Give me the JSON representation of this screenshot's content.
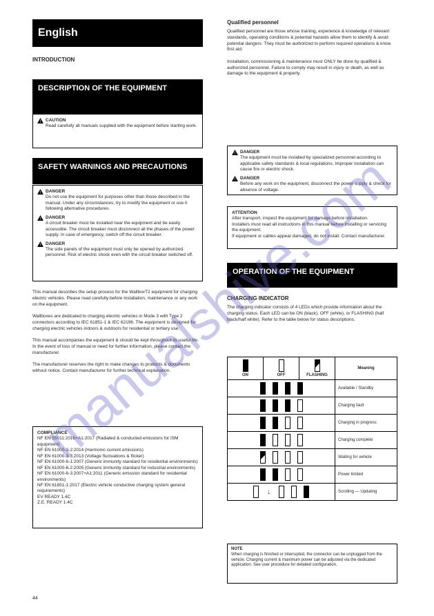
{
  "watermark": "manualshive.com",
  "page_number": "44",
  "banners": {
    "main": "English",
    "sub1": "DESCRIPTION OF THE EQUIPMENT",
    "sub2": "SAFETY WARNINGS AND PRECAUTIONS",
    "right": "OPERATION OF THE EQUIPMENT"
  },
  "box1": {
    "warning_label": "CAUTION",
    "text": "Read carefully all manuals supplied with the equipment before starting work."
  },
  "box2": {
    "w1_label": "DANGER",
    "w1_text": "Do not use the equipment for purposes other than those described in the manual. Under any circumstances, try to modify the equipment or use it following alternative procedures.",
    "w2_label": "DANGER",
    "w2_text": "A circuit breaker must be installed near the equipment and be easily accessible. The circuit breaker must disconnect all the phases of the power supply. In case of emergency, switch off the circuit breaker.",
    "w3_label": "DANGER",
    "w3_text": "The side panels of the equipment must only be opened by authorized personnel. Risk of electric shock even with the circuit breaker switched off."
  },
  "intro_heading": "INTRODUCTION",
  "intro_text": "This manual describes the setup process for the WallboxT2 equipment for charging electric vehicles. Please read carefully before installation, maintenance or any work on the equipment.\n\nWallboxes are dedicated to charging electric vehicles in Mode 3 with Type 2 connectors according to IEC 61851-1 & IEC 62196. The equipment is designed for charging electric vehicles indoors & outdoors for residential or tertiary use.\n\nThis manual accompanies the equipment & should be kept throughout its useful life. In the event of loss of manual or need for further information, please contact the manufacturer.\n\nThe manufacturer reserves the right to make changes to products & documents without notice. Contact manufacturer for further technical explanation.",
  "box3_heading": "COMPLIANCE",
  "box3_text": "NF EN 55011:2016+A1:2017 (Radiated & conducted emissions for ISM equipment)\nNF EN 61000-3-2:2014 (Harmonic current emissions)\nNF EN 61000-3-3:2013 (Voltage fluctuations & flicker)\nNF EN 61000-6-1:2007 (Generic immunity standard for residential environments)\nNF EN 61000-6-2:2005 (Generic immunity standard for industrial environments)\nNF EN 61000-6-3:2007+A1:2011 (Generic emission standard for residential environments)\nNF EN 61851-1:2017 (Electric vehicle conductive charging system general requirements)\nEV READY 1.4C\nZ.E. READY 1.4C",
  "right_text1_heading": "Qualified personnel",
  "right_text1": "Qualified personnel are those whose training, experience & knowledge of relevant standards, operating conditions & potential hazards allow them to identify & avoid potential dangers. They must be authorized to perform required operations & know first aid.\n\nInstallation, commissioning & maintenance must ONLY be done by qualified & authorized personnel. Failure to comply may result in injury or death, as well as damage to the equipment & property.",
  "rbox1": {
    "w1_label": "DANGER",
    "w1_text": "The equipment must be installed by specialized personnel according to applicable safety standards & local regulations. Improper installation can cause fire or electric shock.",
    "w2_label": "DANGER",
    "w2_text": "Before any work on the equipment, disconnect the power supply & check for absence of voltage."
  },
  "rbox2": {
    "heading": "ATTENTION",
    "text": "After transport, inspect the equipment for damage before installation.\nInstallers must read all instructions in this manual before installing or servicing the equipment.\nIf equipment or cables appear damaged, do not install. Contact manufacturer."
  },
  "op_heading": "CHARGING INDICATOR",
  "op_text": "The charging indicator consists of 4 LEDs which provide information about the charging status. Each LED can be ON (black), OFF (white), or FLASHING (half black/half white). Refer to the table below for status descriptions.",
  "legend": {
    "col_on": "ON",
    "col_off": "OFF",
    "col_flash": "FLASHING",
    "col_meaning": "Meaning",
    "rows": [
      {
        "pattern": [
          "on",
          "on",
          "on",
          "on"
        ],
        "meaning": "Available / Standby"
      },
      {
        "pattern": [
          "on",
          "on",
          "on",
          "off"
        ],
        "meaning": "Charging fault"
      },
      {
        "pattern": [
          "on",
          "on",
          "off",
          "off"
        ],
        "meaning": "Charging in progress"
      },
      {
        "pattern": [
          "on",
          "off",
          "off",
          "off"
        ],
        "meaning": "Charging complete"
      },
      {
        "pattern": [
          "half",
          "off",
          "off",
          "off"
        ],
        "meaning": "Waiting for vehicle"
      },
      {
        "pattern": [
          "on",
          "on",
          "off",
          "off"
        ],
        "meaning": "Power limited"
      },
      {
        "pattern": [
          "off",
          "off",
          "off",
          "on"
        ],
        "arrow": true,
        "meaning": "Scrolling — Updating"
      }
    ]
  },
  "note_heading": "NOTE",
  "note_text": "When charging is finished or interrupted, the connector can be unplugged from the vehicle. Charging current & maximum power can be adjusted via the dedicated application. See user procedure for detailed configuration."
}
